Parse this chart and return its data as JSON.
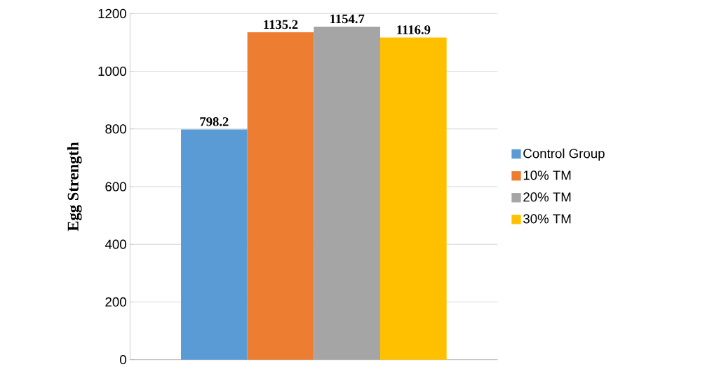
{
  "chart_data": {
    "type": "bar",
    "ylabel": "Egg Strength",
    "categories": [
      null
    ],
    "series": [
      {
        "name": "Control Group",
        "color": "#5b9bd5",
        "values": [
          798.2
        ]
      },
      {
        "name": "10% TM",
        "color": "#ed7d31",
        "values": [
          1135.2
        ]
      },
      {
        "name": "20% TM",
        "color": "#a5a5a5",
        "values": [
          1154.7
        ]
      },
      {
        "name": "30% TM",
        "color": "#ffc000",
        "values": [
          1116.9
        ]
      }
    ],
    "ylim": [
      0,
      1200
    ],
    "yticks": [
      0,
      200,
      400,
      600,
      800,
      1000,
      1200
    ],
    "grid": "y",
    "legend": "right",
    "data_labels": true
  }
}
